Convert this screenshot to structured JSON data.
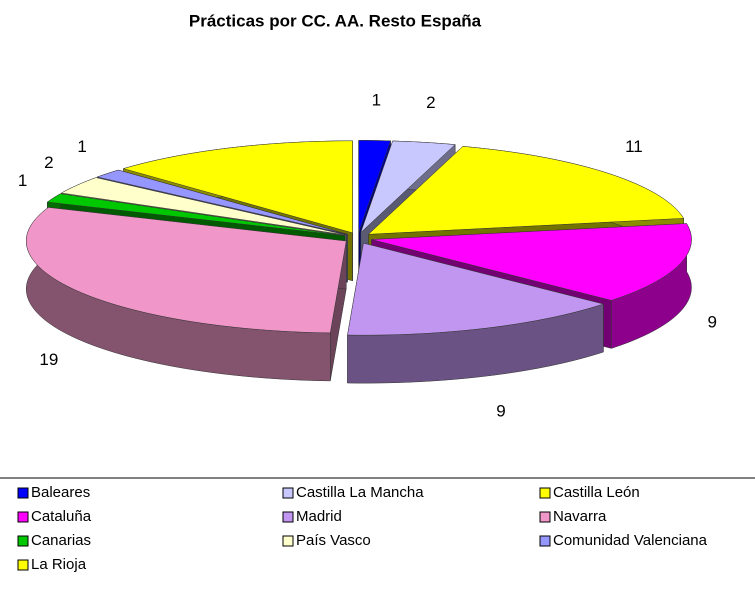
{
  "chart_data": {
    "type": "pie3d",
    "title": "Prácticas por CC. AA. Resto España",
    "categories": [
      "Baleares",
      "Castilla La Mancha",
      "Castilla León",
      "Cataluña",
      "Madrid",
      "Navarra",
      "Canarias",
      "País Vasco",
      "Comunidad Valenciana",
      "La Rioja"
    ],
    "values": [
      1,
      2,
      11,
      9,
      9,
      19,
      1,
      2,
      1,
      8
    ],
    "value_labels": [
      "1",
      "2",
      "11",
      "9",
      "9",
      "19",
      "1",
      "2",
      "1",
      null
    ],
    "colors": [
      "#0000ff",
      "#c8c8ff",
      "#ffff00",
      "#ff00ff",
      "#c096f0",
      "#f096c8",
      "#00c800",
      "#ffffcc",
      "#9696ff",
      "#ffff00"
    ],
    "legend": "bottom"
  }
}
